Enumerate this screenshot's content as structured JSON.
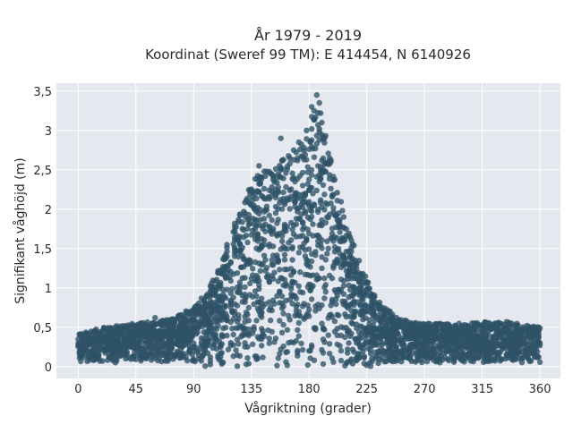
{
  "chart_data": {
    "type": "scatter",
    "title": "År 1979 - 2019",
    "subtitle": "Koordinat (Sweref 99 TM): E 414454, N 6140926",
    "xlabel": "Vågriktning (grader)",
    "ylabel": "Signifikant våghöjd (m)",
    "xlim": [
      -17,
      376
    ],
    "ylim": [
      -0.15,
      3.6
    ],
    "xticks": [
      0,
      45,
      90,
      135,
      180,
      225,
      270,
      315,
      360
    ],
    "xtick_labels": [
      "0",
      "45",
      "90",
      "135",
      "180",
      "225",
      "270",
      "315",
      "360"
    ],
    "yticks": [
      0,
      0.5,
      1,
      1.5,
      2,
      2.5,
      3,
      3.5
    ],
    "ytick_labels": [
      "0",
      "0,5",
      "1",
      "1,5",
      "2",
      "2,5",
      "3",
      "3,5"
    ],
    "grid": true,
    "marker_color": "#2e5266",
    "background_color": "#e5e8ef",
    "envelope": {
      "x": [
        0,
        20,
        45,
        70,
        90,
        100,
        110,
        120,
        130,
        135,
        140,
        150,
        160,
        170,
        180,
        185,
        190,
        200,
        210,
        220,
        230,
        240,
        250,
        270,
        300,
        330,
        360
      ],
      "upper": [
        0.42,
        0.5,
        0.55,
        0.6,
        0.75,
        0.95,
        1.25,
        1.75,
        2.1,
        2.35,
        2.45,
        2.55,
        2.65,
        2.75,
        3.0,
        3.45,
        3.2,
        2.4,
        1.8,
        1.3,
        0.95,
        0.75,
        0.6,
        0.55,
        0.55,
        0.58,
        0.5
      ]
    },
    "outliers": [
      {
        "x": 182,
        "y": 3.3
      },
      {
        "x": 186,
        "y": 3.45
      },
      {
        "x": 184,
        "y": 3.25
      },
      {
        "x": 188,
        "y": 3.35
      },
      {
        "x": 190,
        "y": 3.1
      },
      {
        "x": 178,
        "y": 3.0
      },
      {
        "x": 172,
        "y": 2.85
      },
      {
        "x": 168,
        "y": 2.75
      },
      {
        "x": 158,
        "y": 2.9
      },
      {
        "x": 192,
        "y": 2.9
      },
      {
        "x": 196,
        "y": 2.65
      },
      {
        "x": 141,
        "y": 2.55
      },
      {
        "x": 100,
        "y": 0.9
      },
      {
        "x": 85,
        "y": 0.68
      },
      {
        "x": 60,
        "y": 0.62
      },
      {
        "x": 125,
        "y": 1.6
      }
    ]
  }
}
